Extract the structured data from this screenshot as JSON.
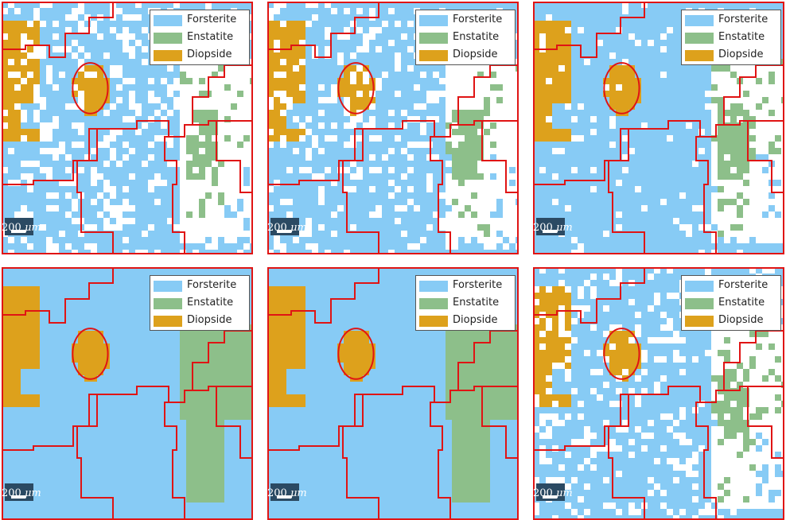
{
  "colors": {
    "forsterite": "#87cbf5",
    "enstatite": "#8dbf8a",
    "diopside": "#dda11c",
    "boundary": "#e01414",
    "background": "#ffffff",
    "scalebar_bg": "#2b4a63"
  },
  "legend": [
    "Forsterite",
    "Enstatite",
    "Diopside"
  ],
  "scalebar": {
    "value": "200",
    "unit": "μm"
  },
  "panels": [
    {
      "id": "raw-map",
      "noise": 0.25
    },
    {
      "id": "raw-pixel-map",
      "noise": 0.22
    },
    {
      "id": "partial-cleanup",
      "noise": 0.08
    },
    {
      "id": "smoothed-fill",
      "noise": 0.0
    },
    {
      "id": "smoothed-fill-refined",
      "noise": 0.0
    },
    {
      "id": "noisy-reconstruction",
      "noise": 0.22
    }
  ]
}
